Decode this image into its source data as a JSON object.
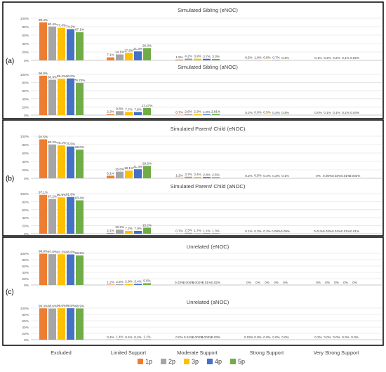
{
  "figure": {
    "group_labels": [
      "(a)",
      "(b)",
      "(c)"
    ],
    "categories": [
      "Excluded",
      "Limited Support",
      "Moderate Support",
      "Strong Support",
      "Very Strong Support"
    ],
    "legend": [
      {
        "name": "1p",
        "color": "#ED7D31"
      },
      {
        "name": "2p",
        "color": "#A5A5A5"
      },
      {
        "name": "3p",
        "color": "#FFC000"
      },
      {
        "name": "4p",
        "color": "#4472C4"
      },
      {
        "name": "5p",
        "color": "#70AD47"
      }
    ],
    "y_ticks": [
      "0%",
      "20%",
      "40%",
      "60%",
      "80%",
      "100%"
    ]
  },
  "chart_data": [
    {
      "type": "bar",
      "title": "Simulated Sibling (eNOC)",
      "group": "(a)",
      "categories": [
        "Excluded",
        "Limited Support",
        "Moderate Support",
        "Strong Support",
        "Very Strong Support"
      ],
      "ylim": [
        0,
        100
      ],
      "series": [
        {
          "name": "1p",
          "values": [
            90.4,
            7.1,
            1.9,
            0.5,
            0.1
          ],
          "labels": [
            "90.4%",
            "7.1%",
            "1.9%",
            "0.5%",
            "0.1%"
          ]
        },
        {
          "name": "2p",
          "values": [
            80.4,
            14.1,
            4.2,
            1.0,
            0.2
          ],
          "labels": [
            "80.4%",
            "14.1%",
            "4.2%",
            "1.0%",
            "0.2%"
          ]
        },
        {
          "name": "3p",
          "values": [
            77.4,
            17.8,
            3.9,
            0.8,
            0.2
          ],
          "labels": [
            "77.4%",
            "17.8%",
            "3.9%",
            "0.8%",
            "0.2%"
          ]
        },
        {
          "name": "4p",
          "values": [
            74.2,
            21.3,
            3.7,
            0.7,
            0.1
          ],
          "labels": [
            "74.2%",
            "21.3%",
            "3.7%",
            "0.7%",
            "0.1%"
          ]
        },
        {
          "name": "5p",
          "values": [
            67.1,
            29.3,
            3.3,
            0.4,
            0.02
          ],
          "labels": [
            "67.1%",
            "29.3%",
            "3.3%",
            "0.4%",
            "0.02%"
          ]
        }
      ]
    },
    {
      "type": "bar",
      "title": "Simulated Sibling (aNOC)",
      "group": "(a)",
      "categories": [
        "Excluded",
        "Limited Support",
        "Moderate Support",
        "Strong Support",
        "Very Strong Support"
      ],
      "ylim": [
        0,
        100
      ],
      "series": [
        {
          "name": "1p",
          "values": [
            96.8,
            2.3,
            0.7,
            0.2,
            0.0
          ],
          "labels": [
            "96.8%",
            "2.3%",
            "0.7%",
            "0.2%",
            "0.0%"
          ]
        },
        {
          "name": "2p",
          "values": [
            86.9,
            9.8,
            2.6,
            0.6,
            0.1
          ],
          "labels": [
            "86.9%",
            "9.8%",
            "2.6%",
            "0.6%",
            "0.1%"
          ]
        },
        {
          "name": "3p",
          "values": [
            89.4,
            7.7,
            2.3,
            0.5,
            0.1
          ],
          "labels": [
            "89.4%",
            "7.7%",
            "2.3%",
            "0.5%",
            "0.1%"
          ]
        },
        {
          "name": "4p",
          "values": [
            90.0,
            7.6,
            1.9,
            0.4,
            0.1
          ],
          "labels": [
            "90.0%",
            "7.6%",
            "1.9%",
            "0.4%",
            "0.1%"
          ]
        },
        {
          "name": "5p",
          "values": [
            79.23,
            17.47,
            2.81,
            0.4,
            0.04
          ],
          "labels": [
            "79.23%",
            "17.47%",
            "2.81%",
            "0.4%",
            "0.04%"
          ]
        }
      ]
    },
    {
      "type": "bar",
      "title": "Simulated Parent/ Child (eNOC)",
      "group": "(b)",
      "categories": [
        "Excluded",
        "Limited Support",
        "Moderate Support",
        "Strong Support",
        "Very Strong Support"
      ],
      "ylim": [
        0,
        100
      ],
      "series": [
        {
          "name": "1p",
          "values": [
            92.5,
            6.1,
            1.2,
            0.2,
            0.0
          ],
          "labels": [
            "92.5%",
            "6.1%",
            "1.2%",
            "0.2%",
            "0%"
          ]
        },
        {
          "name": "2p",
          "values": [
            80.2,
            15.6,
            3.7,
            0.5,
            0.05
          ],
          "labels": [
            "80.2%",
            "15.6%",
            "3.7%",
            "0.5%",
            "0.05%"
          ]
        },
        {
          "name": "3p",
          "values": [
            78.1,
            18.1,
            3.4,
            0.4,
            0.03
          ],
          "labels": [
            "78.1%",
            "18.1%",
            "3.4%",
            "0.4%",
            "0.03%"
          ]
        },
        {
          "name": "4p",
          "values": [
            75.5,
            21.4,
            2.8,
            0.3,
            0.01
          ],
          "labels": [
            "75.5%",
            "21.4%",
            "2.8%",
            "0.3%",
            "0.01%"
          ]
        },
        {
          "name": "5p",
          "values": [
            68.0,
            29.5,
            2.5,
            0.1,
            0.002
          ],
          "labels": [
            "68.0%",
            "29.5%",
            "2.5%",
            "0.1%",
            "0.002%"
          ]
        }
      ]
    },
    {
      "type": "bar",
      "title": "Simulated Parent/ Child (aNOC)",
      "group": "(b)",
      "categories": [
        "Excluded",
        "Limited Support",
        "Moderate Support",
        "Strong Support",
        "Very Strong Support"
      ],
      "ylim": [
        0,
        100
      ],
      "series": [
        {
          "name": "1p",
          "values": [
            97.1,
            2.1,
            0.7,
            0.1,
            0.01
          ],
          "labels": [
            "97.1%",
            "2.1%",
            "0.7%",
            "0.1%",
            "0.01%"
          ]
        },
        {
          "name": "2p",
          "values": [
            87.2,
            10.2,
            2.3,
            0.3,
            0.03
          ],
          "labels": [
            "87.2%",
            "10.2%",
            "2.3%",
            "0.3%",
            "0.03%"
          ]
        },
        {
          "name": "3p",
          "values": [
            90.9,
            7.2,
            1.7,
            0.2,
            0.01
          ],
          "labels": [
            "90.9%",
            "7.2%",
            "1.7%",
            "0.2%",
            "0.01%"
          ]
        },
        {
          "name": "4p",
          "values": [
            91.8,
            7.0,
            1.1,
            0.08,
            0.01
          ],
          "labels": [
            "91.8%",
            "7.0%",
            "1.1%",
            "0.08%",
            "0.01%"
          ]
        },
        {
          "name": "5p",
          "values": [
            83.4,
            15.2,
            1.3,
            0.09,
            0.01
          ],
          "labels": [
            "83.4%",
            "15.2%",
            "1.3%",
            "0.09%",
            "0.01%"
          ]
        }
      ]
    },
    {
      "type": "bar",
      "title": "Unrelated (eNOC)",
      "group": "(c)",
      "categories": [
        "Excluded",
        "Limited Support",
        "Moderate Support",
        "Strong Support",
        "Very Strong Support"
      ],
      "ylim": [
        0,
        100
      ],
      "series": [
        {
          "name": "1p",
          "values": [
            98.8,
            1.2,
            0.03,
            0,
            0
          ],
          "labels": [
            "98.8%",
            "1.2%",
            "0.03%",
            "0%",
            "0%"
          ]
        },
        {
          "name": "2p",
          "values": [
            97.5,
            2.5,
            0.004,
            0,
            0
          ],
          "labels": [
            "97.5%",
            "2.5%",
            "0.004%",
            "0%",
            "0%"
          ]
        },
        {
          "name": "3p",
          "values": [
            97.2,
            2.8,
            0.002,
            0,
            0
          ],
          "labels": [
            "97.2%",
            "2.8%",
            "0.002%",
            "0%",
            "0%"
          ]
        },
        {
          "name": "4p",
          "values": [
            96.6,
            3.4,
            0.01,
            0,
            0
          ],
          "labels": [
            "96.6%",
            "3.4%",
            "0.01%",
            "0%",
            "0%"
          ]
        },
        {
          "name": "5p",
          "values": [
            93.5,
            5.5,
            0.02,
            0,
            0
          ],
          "labels": [
            "93.5%",
            "5.5%",
            "0.02%",
            "0%",
            "0%"
          ]
        }
      ]
    },
    {
      "type": "bar",
      "title": "Unrelated (aNOC)",
      "group": "(c)",
      "categories": [
        "Excluded",
        "Limited Support",
        "Moderate Support",
        "Strong Support",
        "Very Strong Support"
      ],
      "ylim": [
        0,
        100
      ],
      "series": [
        {
          "name": "1p",
          "values": [
            99.3,
            0.4,
            0.0,
            0.02,
            0.2
          ],
          "labels": [
            "99.3%",
            "0.4%",
            "0.0%",
            "0.02%",
            "0.2%"
          ]
        },
        {
          "name": "2p",
          "values": [
            98.6,
            1.4,
            0.01,
            0.0,
            0.0
          ],
          "labels": [
            "98.6%",
            "1.4%",
            "0.01%",
            "0.0%",
            "0.0%"
          ]
        },
        {
          "name": "3p",
          "values": [
            99.6,
            0.4,
            0.002,
            0.0,
            0.0
          ],
          "labels": [
            "99.6%",
            "0.4%",
            "0.002%",
            "0.0%",
            "0.0%"
          ]
        },
        {
          "name": "4p",
          "values": [
            99.6,
            0.4,
            0.003,
            0.0,
            0.0
          ],
          "labels": [
            "99.6%",
            "0.4%",
            "0.003%",
            "0.0%",
            "0.0%"
          ]
        },
        {
          "name": "5p",
          "values": [
            98.9,
            1.1,
            0.03,
            0.0,
            0.0
          ],
          "labels": [
            "98.9%",
            "1.1%",
            "0.03%",
            "0.0%",
            "0.0%"
          ]
        }
      ]
    }
  ]
}
